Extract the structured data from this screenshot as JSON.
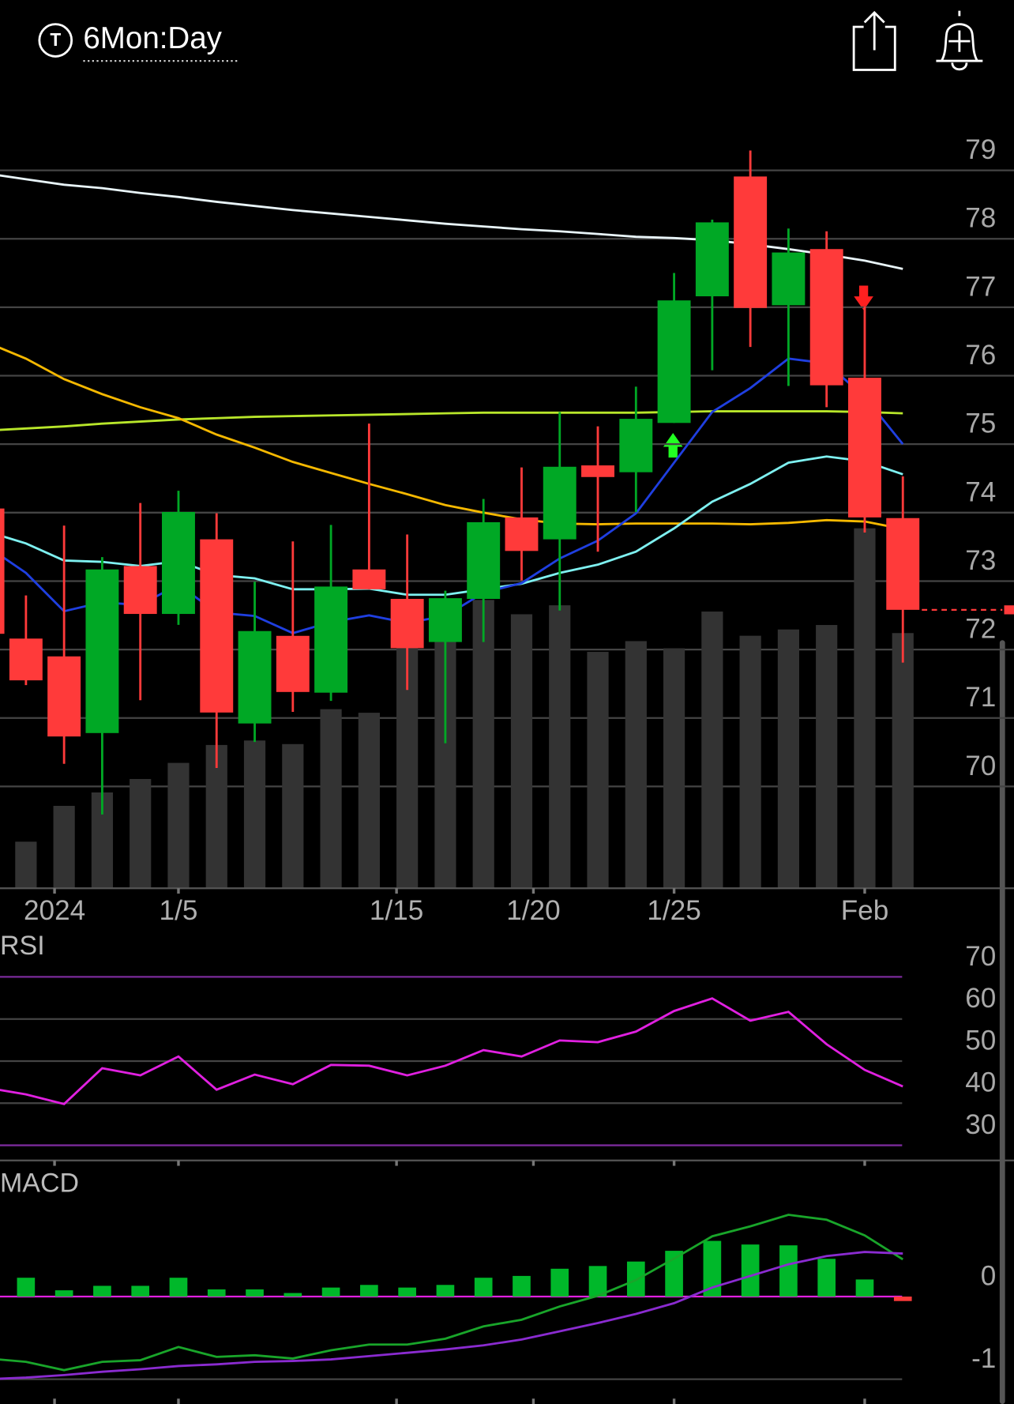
{
  "header": {
    "title": "6Mon:Day"
  },
  "chart_data": [
    {
      "type": "candlestick",
      "open": [
        74.06,
        72.16,
        71.9,
        70.78,
        73.22,
        72.52,
        73.61,
        70.92,
        72.2,
        71.37,
        73.17,
        72.74,
        72.11,
        72.74,
        73.93,
        73.61,
        74.69,
        74.59,
        75.31,
        77.16,
        78.91,
        77.03,
        77.85,
        75.97,
        73.92
      ],
      "high": [
        null,
        72.79,
        73.81,
        73.35,
        74.14,
        74.32,
        73.99,
        72.99,
        73.58,
        73.82,
        75.3,
        73.68,
        72.86,
        74.2,
        74.66,
        75.47,
        75.26,
        75.84,
        77.5,
        78.28,
        79.29,
        78.15,
        78.11,
        77.01,
        74.53
      ],
      "low": [
        null,
        71.48,
        70.33,
        69.59,
        71.26,
        72.36,
        70.27,
        70.65,
        71.09,
        71.25,
        72.88,
        71.41,
        70.63,
        72.11,
        73.01,
        72.57,
        73.43,
        74.01,
        75.31,
        76.08,
        76.42,
        75.85,
        75.54,
        73.71,
        71.81
      ],
      "close": [
        72.23,
        71.55,
        70.73,
        73.17,
        72.52,
        74.01,
        71.08,
        72.27,
        71.38,
        72.92,
        72.88,
        72.02,
        72.75,
        73.86,
        73.44,
        74.67,
        74.52,
        75.37,
        77.1,
        78.24,
        76.99,
        77.8,
        75.86,
        73.93,
        72.58
      ],
      "up_color": "#00a825",
      "down_color": "#ff3a3a",
      "volume": {
        "color": "#333333",
        "values": [
          null,
          52,
          92,
          107,
          122,
          140,
          160,
          165,
          161,
          200,
          196,
          272,
          280,
          322,
          306,
          316,
          264,
          276,
          268,
          309,
          282,
          289,
          294,
          402,
          285
        ]
      },
      "series": [
        {
          "color": "#e8f4f8",
          "values": [
            78.95,
            78.87,
            78.79,
            78.74,
            78.67,
            78.61,
            78.54,
            78.48,
            78.42,
            78.37,
            78.32,
            78.27,
            78.22,
            78.18,
            78.14,
            78.11,
            78.07,
            78.03,
            78.01,
            77.98,
            77.92,
            77.85,
            77.77,
            77.68,
            77.56
          ]
        },
        {
          "color": "#b8e62a",
          "values": [
            75.2,
            75.23,
            75.26,
            75.3,
            75.33,
            75.36,
            75.38,
            75.4,
            75.41,
            75.42,
            75.43,
            75.44,
            75.45,
            75.46,
            75.46,
            75.46,
            75.46,
            75.46,
            75.47,
            75.48,
            75.48,
            75.48,
            75.48,
            75.47,
            75.45
          ]
        },
        {
          "color": "#f5b800",
          "values": [
            76.48,
            76.25,
            75.95,
            75.73,
            75.54,
            75.38,
            75.14,
            74.95,
            74.74,
            74.58,
            74.42,
            74.27,
            74.11,
            74.0,
            73.9,
            73.84,
            73.83,
            73.84,
            73.84,
            73.84,
            73.83,
            73.85,
            73.89,
            73.87,
            73.76
          ]
        },
        {
          "color": "#7ef0f0",
          "values": [
            73.72,
            73.55,
            73.3,
            73.28,
            73.22,
            73.29,
            73.09,
            73.04,
            72.88,
            72.88,
            72.89,
            72.8,
            72.8,
            72.88,
            72.96,
            73.12,
            73.24,
            73.43,
            73.77,
            74.16,
            74.42,
            74.73,
            74.82,
            74.75,
            74.56
          ]
        },
        {
          "color": "#1f3fe0",
          "values": [
            73.5,
            73.12,
            72.56,
            72.69,
            72.65,
            72.95,
            72.54,
            72.49,
            72.24,
            72.4,
            72.5,
            72.39,
            72.49,
            72.83,
            72.97,
            73.33,
            73.59,
            73.99,
            74.73,
            75.47,
            75.82,
            76.25,
            76.18,
            75.69,
            75.0
          ]
        }
      ],
      "ylim": [
        68.5,
        79.5
      ],
      "yticks": [
        70,
        71,
        72,
        73,
        74,
        75,
        76,
        77,
        78,
        79
      ],
      "grid": true,
      "xticks": [
        {
          "value": 1.75,
          "label": "2024"
        },
        {
          "value": 5,
          "label": "1/5"
        },
        {
          "value": 10.72,
          "label": "1/15"
        },
        {
          "value": 14.31,
          "label": "1/20"
        },
        {
          "value": 18,
          "label": "1/25"
        },
        {
          "value": 23,
          "label": "Feb"
        }
      ]
    },
    {
      "type": "line",
      "title": "RSI",
      "color": "#e020e0",
      "values": [
        43.6,
        42.1,
        39.8,
        48.3,
        46.6,
        51.1,
        43.2,
        46.8,
        44.5,
        49.1,
        48.9,
        46.6,
        48.9,
        52.6,
        51.1,
        54.9,
        54.5,
        57.0,
        61.9,
        64.9,
        59.6,
        61.7,
        54.0,
        47.9,
        44.0
      ],
      "ylim": [
        26.4,
        80.85
      ],
      "yticks": [
        30,
        40,
        50,
        60,
        70
      ],
      "bound_color": "#7a2a9a",
      "grid": true
    },
    {
      "type": "macd",
      "title": "MACD",
      "histogram": {
        "color": "#00b82a",
        "negative_color": "#ff3a3a",
        "values": [
          null,
          0.228,
          0.076,
          0.13,
          0.13,
          0.228,
          0.087,
          0.087,
          0.043,
          0.109,
          0.141,
          0.109,
          0.141,
          0.228,
          0.25,
          0.337,
          0.37,
          0.424,
          0.554,
          0.674,
          0.63,
          0.62,
          0.457,
          0.207,
          -0.054
        ]
      },
      "series": [
        {
          "color": "#19a52a",
          "values": [
            -0.75,
            -0.79,
            -0.89,
            -0.79,
            -0.77,
            -0.61,
            -0.73,
            -0.71,
            -0.75,
            -0.65,
            -0.58,
            -0.58,
            -0.51,
            -0.36,
            -0.28,
            -0.12,
            0.01,
            0.2,
            0.46,
            0.73,
            0.85,
            0.99,
            0.93,
            0.74,
            0.45
          ]
        },
        {
          "color": "#8a2bd0",
          "values": [
            -1.0,
            -0.98,
            -0.95,
            -0.91,
            -0.88,
            -0.84,
            -0.82,
            -0.79,
            -0.78,
            -0.76,
            -0.72,
            -0.68,
            -0.64,
            -0.59,
            -0.52,
            -0.42,
            -0.32,
            -0.21,
            -0.08,
            0.11,
            0.25,
            0.39,
            0.49,
            0.54,
            0.52
          ]
        }
      ],
      "ylim": [
        -1.3,
        1.55
      ],
      "yticks": [
        -1,
        0
      ],
      "zero_color": "#e020e0",
      "grid": true
    }
  ]
}
